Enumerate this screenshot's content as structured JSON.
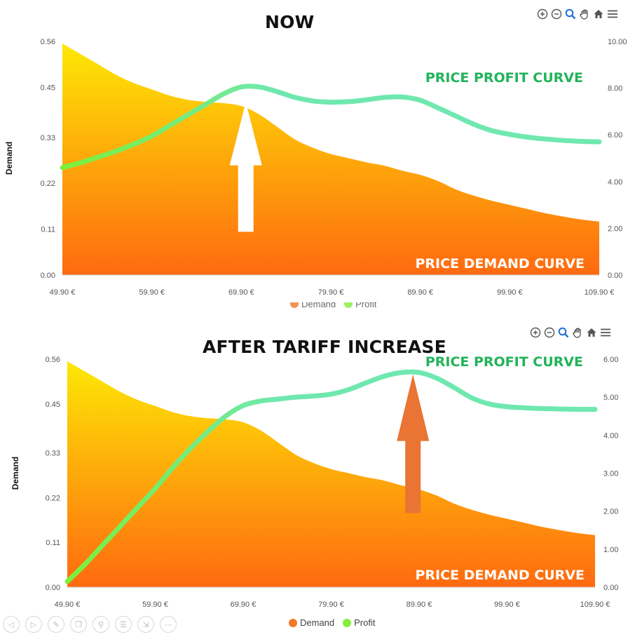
{
  "toolbar_icons": [
    "zoom-in-icon",
    "zoom-out-icon",
    "zoom-select-icon",
    "pan-hand-icon",
    "home-icon",
    "menu-icon"
  ],
  "nav_icons": [
    "prev-icon",
    "next-icon",
    "pen-icon",
    "copy-icon",
    "search-icon",
    "list-icon",
    "export-icon",
    "more-icon"
  ],
  "colors": {
    "demand_top": "#fde805",
    "demand_bottom": "#ff6a10",
    "profit_start": "#7cf03a",
    "profit_end": "#6fe8b0",
    "profit_label": "#22b35a",
    "arrow_top": "#ffffff",
    "arrow_bottom": "#ea7433"
  },
  "chart_data": [
    {
      "type": "area",
      "title": "NOW",
      "categories": [
        "49.90 €",
        "59.90 €",
        "69.90 €",
        "79.90 €",
        "89.90 €",
        "99.90 €",
        "109.90 €"
      ],
      "x": [
        49.9,
        51.9,
        53.9,
        55.9,
        57.9,
        59.9,
        61.9,
        63.9,
        65.9,
        67.9,
        69.9,
        71.9,
        73.9,
        75.9,
        77.9,
        79.9,
        81.9,
        83.9,
        85.9,
        87.9,
        89.9,
        91.9,
        93.9,
        95.9,
        97.9,
        99.9,
        101.9,
        103.9,
        105.9,
        107.9,
        109.9
      ],
      "series": [
        {
          "name": "Demand",
          "axis": "left",
          "values": [
            0.555,
            0.53,
            0.505,
            0.48,
            0.46,
            0.445,
            0.43,
            0.42,
            0.415,
            0.412,
            0.405,
            0.385,
            0.355,
            0.325,
            0.305,
            0.29,
            0.28,
            0.27,
            0.262,
            0.25,
            0.24,
            0.225,
            0.205,
            0.19,
            0.178,
            0.168,
            0.158,
            0.148,
            0.14,
            0.133,
            0.128
          ]
        },
        {
          "name": "Profit",
          "axis": "right",
          "values": [
            4.6,
            4.8,
            5.05,
            5.3,
            5.6,
            5.95,
            6.4,
            6.85,
            7.3,
            7.75,
            8.05,
            8.05,
            7.85,
            7.6,
            7.45,
            7.4,
            7.42,
            7.5,
            7.6,
            7.62,
            7.48,
            7.15,
            6.8,
            6.45,
            6.18,
            6.02,
            5.9,
            5.82,
            5.76,
            5.72,
            5.7
          ]
        }
      ],
      "y_left": {
        "label": "Demand",
        "min": 0,
        "max": 0.56,
        "ticks": [
          "0.00",
          "0.11",
          "0.22",
          "0.33",
          "0.45",
          "0.56"
        ]
      },
      "y_right": {
        "min": 0,
        "max": 10,
        "ticks": [
          "0.00",
          "2.00",
          "4.00",
          "6.00",
          "8.00",
          "10.00"
        ]
      },
      "arrow": {
        "x": 70.4,
        "from": 1.85,
        "to": 7.4
      },
      "annotations": {
        "profit": "PRICE PROFIT CURVE",
        "demand": "PRICE DEMAND CURVE"
      },
      "legend": [
        "Demand",
        "Profit"
      ]
    },
    {
      "type": "area",
      "title": "AFTER TARIFF INCREASE",
      "categories": [
        "49.90 €",
        "59.90 €",
        "69.90 €",
        "79.90 €",
        "89.90 €",
        "99.90 €",
        "109.90 €"
      ],
      "x": [
        49.9,
        51.9,
        53.9,
        55.9,
        57.9,
        59.9,
        61.9,
        63.9,
        65.9,
        67.9,
        69.9,
        71.9,
        73.9,
        75.9,
        77.9,
        79.9,
        81.9,
        83.9,
        85.9,
        87.9,
        89.9,
        91.9,
        93.9,
        95.9,
        97.9,
        99.9,
        101.9,
        103.9,
        105.9,
        107.9,
        109.9
      ],
      "series": [
        {
          "name": "Demand",
          "axis": "left",
          "values": [
            0.555,
            0.53,
            0.505,
            0.48,
            0.46,
            0.445,
            0.43,
            0.42,
            0.415,
            0.412,
            0.405,
            0.385,
            0.355,
            0.325,
            0.305,
            0.29,
            0.28,
            0.27,
            0.262,
            0.25,
            0.24,
            0.225,
            0.205,
            0.19,
            0.178,
            0.168,
            0.158,
            0.148,
            0.14,
            0.133,
            0.128
          ]
        },
        {
          "name": "Profit",
          "axis": "right",
          "values": [
            0.15,
            0.6,
            1.1,
            1.6,
            2.1,
            2.6,
            3.15,
            3.65,
            4.1,
            4.5,
            4.78,
            4.9,
            4.95,
            5.0,
            5.03,
            5.08,
            5.2,
            5.38,
            5.55,
            5.65,
            5.65,
            5.5,
            5.25,
            4.98,
            4.82,
            4.75,
            4.72,
            4.7,
            4.69,
            4.68,
            4.68
          ]
        }
      ],
      "y_left": {
        "label": "Demand",
        "min": 0,
        "max": 0.56,
        "ticks": [
          "0.00",
          "0.11",
          "0.22",
          "0.33",
          "0.45",
          "0.56"
        ]
      },
      "y_right": {
        "min": 0,
        "max": 6,
        "ticks": [
          "0.00",
          "1.00",
          "2.00",
          "3.00",
          "4.00",
          "5.00",
          "6.00"
        ]
      },
      "arrow": {
        "x": 89.2,
        "from": 1.95,
        "to": 5.6
      },
      "annotations": {
        "profit": "PRICE PROFIT CURVE",
        "demand": "PRICE DEMAND CURVE"
      },
      "legend": [
        "Demand",
        "Profit"
      ]
    }
  ]
}
